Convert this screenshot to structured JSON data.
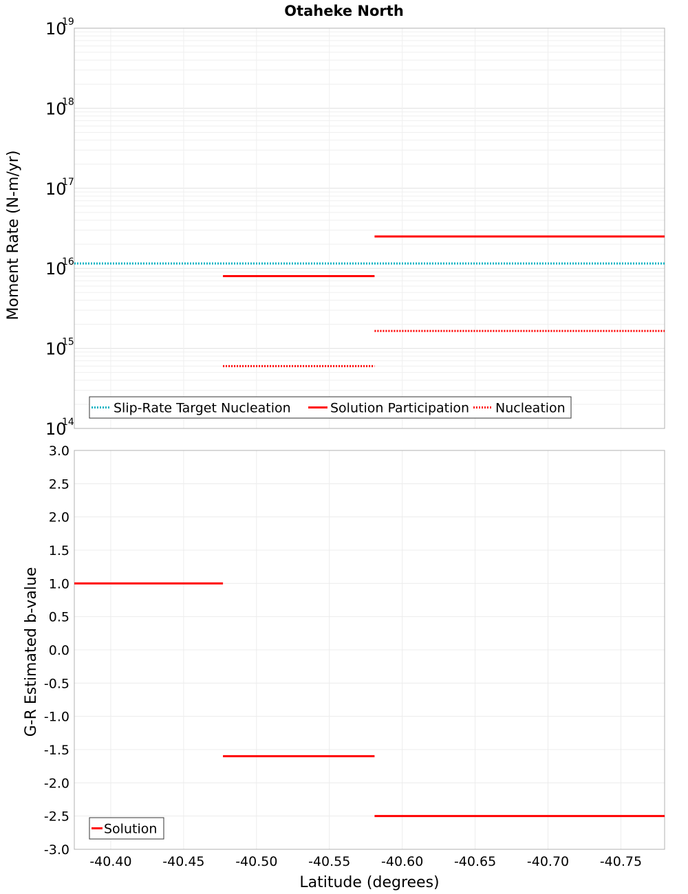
{
  "title": "Otaheke North",
  "colors": {
    "teal": "#00b2c2",
    "red": "#ff0000",
    "grid": "#e6e6e6",
    "frame": "#b0b0b0"
  },
  "chart_data": [
    {
      "type": "line",
      "title": "Otaheke North",
      "ylabel": "Moment Rate (N-m/yr)",
      "yscale": "log",
      "ylim": [
        100000000000000.0,
        1e+19
      ],
      "ytick_base": "10",
      "yticks": [
        {
          "value": 100000000000000.0,
          "exp": "14"
        },
        {
          "value": 1000000000000000.0,
          "exp": "15"
        },
        {
          "value": 1e+16,
          "exp": "16"
        },
        {
          "value": 1e+17,
          "exp": "17"
        },
        {
          "value": 1e+18,
          "exp": "18"
        },
        {
          "value": 1e+19,
          "exp": "19"
        }
      ],
      "xlim": [
        -40.375,
        -40.78
      ],
      "grid": true,
      "legend_position": "bottom-left",
      "legend": [
        {
          "label": "Slip-Rate Target Nucleation",
          "color": "#00b2c2",
          "style": "dotted"
        },
        {
          "label": "Solution Participation",
          "color": "#ff0000",
          "style": "solid"
        },
        {
          "label": "Nucleation",
          "color": "#ff0000",
          "style": "dotted"
        }
      ],
      "series": [
        {
          "name": "Slip-Rate Target Nucleation",
          "color": "#00b2c2",
          "style": "dotted",
          "segments": [
            {
              "x0": -40.375,
              "x1": -40.78,
              "y": 1.15e+16
            }
          ]
        },
        {
          "name": "Solution Participation",
          "color": "#ff0000",
          "style": "solid",
          "segments": [
            {
              "x0": -40.477,
              "x1": -40.581,
              "y": 8000000000000000.0
            },
            {
              "x0": -40.581,
              "x1": -40.78,
              "y": 2.5e+16
            }
          ]
        },
        {
          "name": "Nucleation",
          "color": "#ff0000",
          "style": "dotted",
          "segments": [
            {
              "x0": -40.477,
              "x1": -40.581,
              "y": 600000000000000.0
            },
            {
              "x0": -40.581,
              "x1": -40.78,
              "y": 1650000000000000.0
            }
          ]
        }
      ]
    },
    {
      "type": "line",
      "xlabel": "Latitude (degrees)",
      "ylabel": "G-R Estimated b-value",
      "ylim": [
        -3.0,
        3.0
      ],
      "yticks": [
        "3.0",
        "2.5",
        "2.0",
        "1.5",
        "1.0",
        "0.5",
        "0.0",
        "-0.5",
        "-1.0",
        "-1.5",
        "-2.0",
        "-2.5",
        "-3.0"
      ],
      "xlim": [
        -40.375,
        -40.78
      ],
      "xticks": [
        "-40.40",
        "-40.45",
        "-40.50",
        "-40.55",
        "-40.60",
        "-40.65",
        "-40.70",
        "-40.75"
      ],
      "grid": true,
      "legend_position": "bottom-left",
      "legend": [
        {
          "label": "Solution",
          "color": "#ff0000",
          "style": "solid"
        }
      ],
      "series": [
        {
          "name": "Solution",
          "color": "#ff0000",
          "style": "solid",
          "segments": [
            {
              "x0": -40.375,
              "x1": -40.477,
              "y": 1.0
            },
            {
              "x0": -40.477,
              "x1": -40.581,
              "y": -1.6
            },
            {
              "x0": -40.581,
              "x1": -40.78,
              "y": -2.5
            }
          ]
        }
      ]
    }
  ]
}
